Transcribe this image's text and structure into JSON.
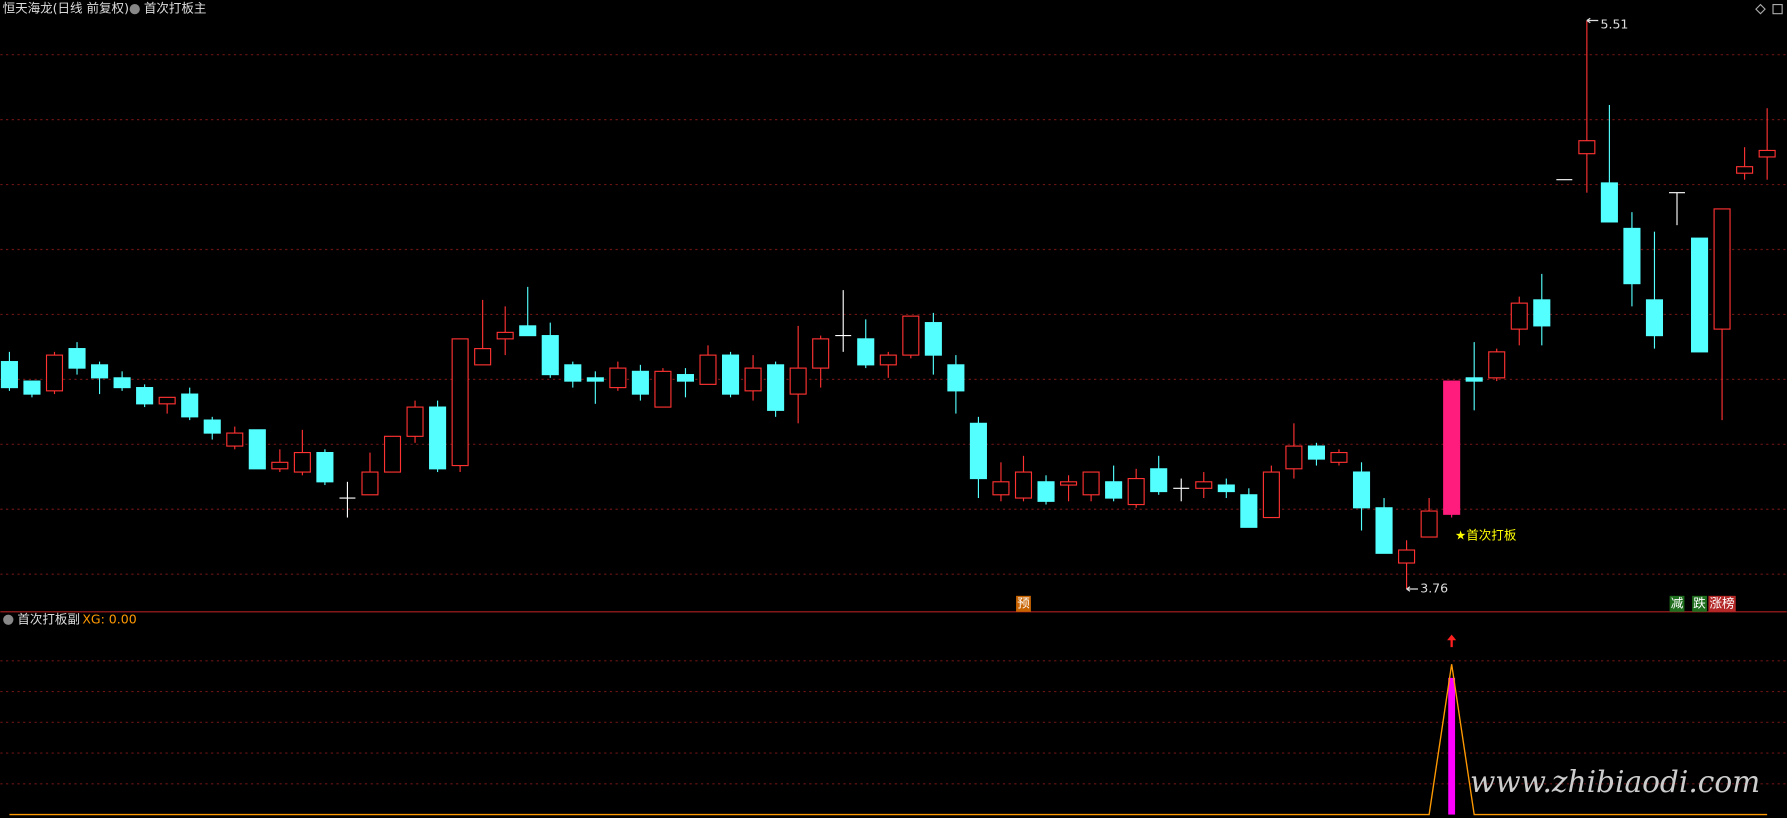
{
  "title": "恒天海龙(日线 前复权)",
  "main_indicator": "首次打板主",
  "watermark": "www.zhibiaodi.com",
  "chart_data": [
    {
      "type": "candlestick",
      "up_color": "#ff3232",
      "down_color": "#54ffff",
      "doji_color": "#ffffff",
      "candles": [
        {
          "o": 4.46,
          "h": 4.49,
          "l": 4.37,
          "c": 4.38
        },
        {
          "o": 4.4,
          "h": 4.4,
          "l": 4.35,
          "c": 4.36
        },
        {
          "o": 4.37,
          "h": 4.49,
          "l": 4.36,
          "c": 4.48
        },
        {
          "o": 4.5,
          "h": 4.52,
          "l": 4.42,
          "c": 4.44
        },
        {
          "o": 4.45,
          "h": 4.46,
          "l": 4.36,
          "c": 4.41
        },
        {
          "o": 4.41,
          "h": 4.43,
          "l": 4.37,
          "c": 4.38
        },
        {
          "o": 4.38,
          "h": 4.39,
          "l": 4.32,
          "c": 4.33
        },
        {
          "o": 4.33,
          "h": 4.35,
          "l": 4.3,
          "c": 4.35
        },
        {
          "o": 4.36,
          "h": 4.38,
          "l": 4.28,
          "c": 4.29
        },
        {
          "o": 4.28,
          "h": 4.29,
          "l": 4.22,
          "c": 4.24
        },
        {
          "o": 4.2,
          "h": 4.26,
          "l": 4.19,
          "c": 4.24
        },
        {
          "o": 4.25,
          "h": 4.25,
          "l": 4.13,
          "c": 4.13
        },
        {
          "o": 4.13,
          "h": 4.19,
          "l": 4.12,
          "c": 4.15
        },
        {
          "o": 4.12,
          "h": 4.25,
          "l": 4.11,
          "c": 4.18
        },
        {
          "o": 4.18,
          "h": 4.19,
          "l": 4.08,
          "c": 4.09
        },
        {
          "o": 4.04,
          "h": 4.09,
          "l": 3.98,
          "c": 4.04
        },
        {
          "o": 4.05,
          "h": 4.18,
          "l": 4.05,
          "c": 4.12
        },
        {
          "o": 4.12,
          "h": 4.23,
          "l": 4.12,
          "c": 4.23
        },
        {
          "o": 4.23,
          "h": 4.34,
          "l": 4.21,
          "c": 4.32
        },
        {
          "o": 4.32,
          "h": 4.34,
          "l": 4.12,
          "c": 4.13
        },
        {
          "o": 4.14,
          "h": 4.53,
          "l": 4.12,
          "c": 4.53
        },
        {
          "o": 4.45,
          "h": 4.65,
          "l": 4.45,
          "c": 4.5
        },
        {
          "o": 4.53,
          "h": 4.63,
          "l": 4.48,
          "c": 4.55
        },
        {
          "o": 4.57,
          "h": 4.69,
          "l": 4.54,
          "c": 4.54
        },
        {
          "o": 4.54,
          "h": 4.58,
          "l": 4.41,
          "c": 4.42
        },
        {
          "o": 4.45,
          "h": 4.46,
          "l": 4.38,
          "c": 4.4
        },
        {
          "o": 4.41,
          "h": 4.43,
          "l": 4.33,
          "c": 4.4
        },
        {
          "o": 4.38,
          "h": 4.46,
          "l": 4.37,
          "c": 4.44
        },
        {
          "o": 4.43,
          "h": 4.45,
          "l": 4.34,
          "c": 4.36
        },
        {
          "o": 4.32,
          "h": 4.44,
          "l": 4.32,
          "c": 4.43
        },
        {
          "o": 4.42,
          "h": 4.44,
          "l": 4.35,
          "c": 4.4
        },
        {
          "o": 4.39,
          "h": 4.51,
          "l": 4.39,
          "c": 4.48
        },
        {
          "o": 4.48,
          "h": 4.49,
          "l": 4.35,
          "c": 4.36
        },
        {
          "o": 4.37,
          "h": 4.48,
          "l": 4.34,
          "c": 4.44
        },
        {
          "o": 4.45,
          "h": 4.46,
          "l": 4.29,
          "c": 4.31
        },
        {
          "o": 4.36,
          "h": 4.57,
          "l": 4.27,
          "c": 4.44
        },
        {
          "o": 4.44,
          "h": 4.54,
          "l": 4.38,
          "c": 4.53
        },
        {
          "o": 4.54,
          "h": 4.68,
          "l": 4.49,
          "c": 4.54
        },
        {
          "o": 4.53,
          "h": 4.59,
          "l": 4.44,
          "c": 4.45
        },
        {
          "o": 4.45,
          "h": 4.49,
          "l": 4.41,
          "c": 4.48
        },
        {
          "o": 4.48,
          "h": 4.6,
          "l": 4.47,
          "c": 4.6
        },
        {
          "o": 4.58,
          "h": 4.61,
          "l": 4.42,
          "c": 4.48
        },
        {
          "o": 4.45,
          "h": 4.48,
          "l": 4.3,
          "c": 4.37
        },
        {
          "o": 4.27,
          "h": 4.29,
          "l": 4.04,
          "c": 4.1
        },
        {
          "o": 4.05,
          "h": 4.15,
          "l": 4.03,
          "c": 4.09
        },
        {
          "o": 4.04,
          "h": 4.17,
          "l": 4.03,
          "c": 4.12
        },
        {
          "o": 4.09,
          "h": 4.11,
          "l": 4.02,
          "c": 4.03
        },
        {
          "o": 4.08,
          "h": 4.11,
          "l": 4.03,
          "c": 4.09
        },
        {
          "o": 4.05,
          "h": 4.12,
          "l": 4.03,
          "c": 4.12
        },
        {
          "o": 4.09,
          "h": 4.14,
          "l": 4.03,
          "c": 4.04
        },
        {
          "o": 4.02,
          "h": 4.13,
          "l": 4.01,
          "c": 4.1
        },
        {
          "o": 4.13,
          "h": 4.17,
          "l": 4.05,
          "c": 4.06
        },
        {
          "o": 4.07,
          "h": 4.1,
          "l": 4.03,
          "c": 4.07
        },
        {
          "o": 4.07,
          "h": 4.12,
          "l": 4.04,
          "c": 4.09
        },
        {
          "o": 4.08,
          "h": 4.1,
          "l": 4.04,
          "c": 4.06
        },
        {
          "o": 4.05,
          "h": 4.07,
          "l": 3.95,
          "c": 3.95
        },
        {
          "o": 3.98,
          "h": 4.14,
          "l": 3.98,
          "c": 4.12
        },
        {
          "o": 4.13,
          "h": 4.27,
          "l": 4.1,
          "c": 4.2
        },
        {
          "o": 4.2,
          "h": 4.21,
          "l": 4.14,
          "c": 4.16
        },
        {
          "o": 4.15,
          "h": 4.19,
          "l": 4.14,
          "c": 4.18
        },
        {
          "o": 4.12,
          "h": 4.15,
          "l": 3.94,
          "c": 4.01
        },
        {
          "o": 4.01,
          "h": 4.04,
          "l": 3.87,
          "c": 3.87
        },
        {
          "o": 3.84,
          "h": 3.91,
          "l": 3.76,
          "c": 3.88
        },
        {
          "o": 3.92,
          "h": 4.04,
          "l": 3.92,
          "c": 4.0
        },
        {
          "o": 3.99,
          "h": 4.4,
          "l": 3.98,
          "c": 4.4
        },
        {
          "o": 4.41,
          "h": 4.52,
          "l": 4.31,
          "c": 4.4
        },
        {
          "o": 4.41,
          "h": 4.5,
          "l": 4.4,
          "c": 4.49
        },
        {
          "o": 4.56,
          "h": 4.66,
          "l": 4.51,
          "c": 4.64
        },
        {
          "o": 4.65,
          "h": 4.73,
          "l": 4.51,
          "c": 4.57
        },
        {
          "o": 5.02,
          "h": 5.02,
          "l": 5.02,
          "c": 5.02
        },
        {
          "o": 5.1,
          "h": 5.51,
          "l": 4.98,
          "c": 5.14
        },
        {
          "o": 5.01,
          "h": 5.25,
          "l": 4.89,
          "c": 4.89
        },
        {
          "o": 4.87,
          "h": 4.92,
          "l": 4.63,
          "c": 4.7
        },
        {
          "o": 4.65,
          "h": 4.86,
          "l": 4.5,
          "c": 4.54
        },
        {
          "o": 4.98,
          "h": 4.98,
          "l": 4.88,
          "c": 4.98
        },
        {
          "o": 4.84,
          "h": 4.84,
          "l": 4.49,
          "c": 4.49
        },
        {
          "o": 4.56,
          "h": 4.93,
          "l": 4.28,
          "c": 4.93
        },
        {
          "o": 5.04,
          "h": 5.12,
          "l": 5.02,
          "c": 5.06
        },
        {
          "o": 5.09,
          "h": 5.24,
          "l": 5.02,
          "c": 5.11
        }
      ],
      "signal": {
        "at": 64,
        "label": "★首次打板",
        "color": "#ff1c7c",
        "label_color": "#ffff00"
      },
      "markers": [
        {
          "at": 45,
          "text": "预",
          "color": "#c86400"
        },
        {
          "at": 74,
          "text": "减",
          "color": "#1e6e1e"
        },
        {
          "at": 75,
          "text": "跌",
          "color": "#1e6e1e"
        },
        {
          "at": 76,
          "text": "涨榜",
          "color": "#b42828"
        }
      ]
    },
    {
      "type": "line",
      "title": "首次打板副",
      "label": "XG: 0.00",
      "color": "#ff9900",
      "bar_color": "#ff00ff",
      "arrow_color": "#ff2020",
      "values": [
        0,
        0,
        0,
        0,
        0,
        0,
        0,
        0,
        0,
        0,
        0,
        0,
        0,
        0,
        0,
        0,
        0,
        0,
        0,
        0,
        0,
        0,
        0,
        0,
        0,
        0,
        0,
        0,
        0,
        0,
        0,
        0,
        0,
        0,
        0,
        0,
        0,
        0,
        0,
        0,
        0,
        0,
        0,
        0,
        0,
        0,
        0,
        0,
        0,
        0,
        0,
        0,
        0,
        0,
        0,
        0,
        0,
        0,
        0,
        0,
        0,
        0,
        0,
        0,
        1,
        0,
        0,
        0,
        0,
        0,
        0,
        0,
        0,
        0,
        0,
        0,
        0,
        0,
        0
      ]
    }
  ]
}
